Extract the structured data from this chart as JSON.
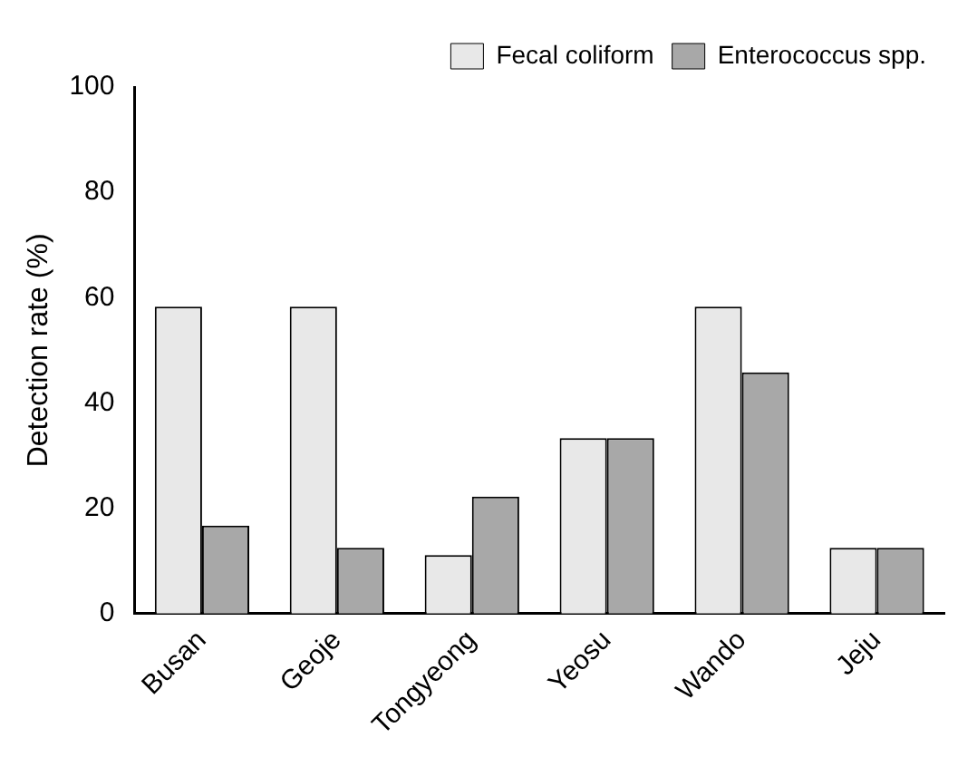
{
  "chart_data": {
    "type": "bar",
    "ylabel": "Detection rate (%)",
    "categories": [
      "Busan",
      "Geoje",
      "Tongyeong",
      "Yeosu",
      "Wando",
      "Jeju"
    ],
    "series": [
      {
        "name": "Fecal coliform",
        "color": "#e8e8e8",
        "values": [
          58.3,
          58.3,
          11.1,
          33.3,
          58.3,
          12.5
        ]
      },
      {
        "name": "Enterococcus spp.",
        "color": "#a8a8a8",
        "values": [
          16.7,
          12.5,
          22.2,
          33.3,
          45.8,
          12.5
        ]
      }
    ],
    "ylim": [
      0,
      100
    ],
    "yticks": [
      0,
      20,
      40,
      60,
      80,
      100
    ],
    "grid": false,
    "legend": "top right"
  }
}
